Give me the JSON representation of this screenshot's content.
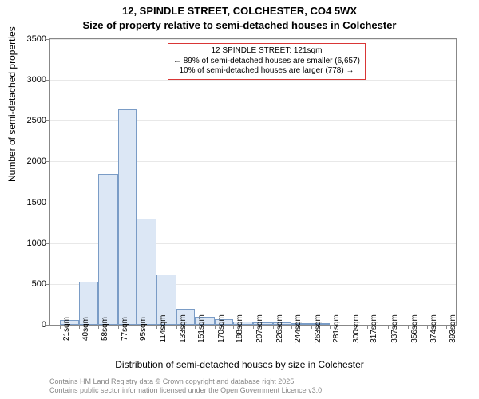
{
  "title_main": "12, SPINDLE STREET, COLCHESTER, CO4 5WX",
  "title_sub": "Size of property relative to semi-detached houses in Colchester",
  "y_axis_label": "Number of semi-detached properties",
  "x_axis_label": "Distribution of semi-detached houses by size in Colchester",
  "attribution_line1": "Contains HM Land Registry data © Crown copyright and database right 2025.",
  "attribution_line2": "Contains public sector information licensed under the Open Government Licence v3.0.",
  "annotation": {
    "line1": "12 SPINDLE STREET: 121sqm",
    "line2": "← 89% of semi-detached houses are smaller (6,657)",
    "line3": "10% of semi-detached houses are larger (778) →"
  },
  "chart": {
    "type": "histogram",
    "background_color": "#ffffff",
    "grid_color": "#e8e8e8",
    "axis_color": "#888888",
    "bar_fill": "#dce7f5",
    "bar_border": "#7a9cc6",
    "marker_color": "#d93636",
    "ylim": [
      0,
      3500
    ],
    "ytick_step": 500,
    "yticks": [
      0,
      500,
      1000,
      1500,
      2000,
      2500,
      3000,
      3500
    ],
    "xlim": [
      12,
      402
    ],
    "marker_value": 121,
    "title_fontsize": 13,
    "label_fontsize": 12,
    "tick_fontsize": 11,
    "xtick_fontsize": 10,
    "annotation_fontsize": 10,
    "attribution_fontsize": 9,
    "attribution_color": "#888888",
    "xtick_labels": [
      "21sqm",
      "40sqm",
      "58sqm",
      "77sqm",
      "95sqm",
      "114sqm",
      "133sqm",
      "151sqm",
      "170sqm",
      "188sqm",
      "207sqm",
      "226sqm",
      "244sqm",
      "263sqm",
      "281sqm",
      "300sqm",
      "317sqm",
      "337sqm",
      "356sqm",
      "374sqm",
      "393sqm"
    ],
    "xtick_positions": [
      21,
      40,
      58,
      77,
      95,
      114,
      133,
      151,
      170,
      188,
      207,
      226,
      244,
      263,
      281,
      300,
      317,
      337,
      356,
      374,
      393
    ],
    "bars": [
      {
        "x": 21,
        "w": 19,
        "value": 60
      },
      {
        "x": 40,
        "w": 18,
        "value": 530
      },
      {
        "x": 58,
        "w": 19,
        "value": 1850
      },
      {
        "x": 77,
        "w": 18,
        "value": 2640
      },
      {
        "x": 95,
        "w": 19,
        "value": 1300
      },
      {
        "x": 114,
        "w": 19,
        "value": 620
      },
      {
        "x": 133,
        "w": 18,
        "value": 200
      },
      {
        "x": 151,
        "w": 19,
        "value": 100
      },
      {
        "x": 170,
        "w": 18,
        "value": 70
      },
      {
        "x": 188,
        "w": 19,
        "value": 40
      },
      {
        "x": 207,
        "w": 19,
        "value": 30
      },
      {
        "x": 226,
        "w": 18,
        "value": 30
      },
      {
        "x": 244,
        "w": 19,
        "value": 15
      },
      {
        "x": 263,
        "w": 18,
        "value": 5
      }
    ]
  }
}
